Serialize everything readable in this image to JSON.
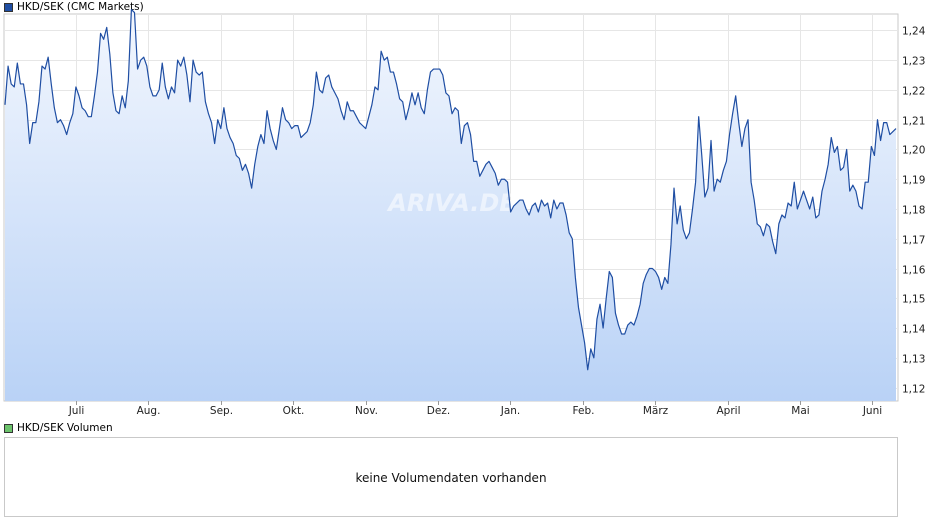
{
  "legend_main": {
    "label": "HKD/SEK (CMC Markets)",
    "color": "#1f4ea3"
  },
  "legend_volume": {
    "label": "HKD/SEK Volumen",
    "color": "#6cc36c"
  },
  "volume_panel": {
    "message": "keine Volumendaten vorhanden"
  },
  "watermark": "ARIVA.DE",
  "chart_data": {
    "type": "area",
    "x_labels": [
      "Juli",
      "Aug.",
      "Sep.",
      "Okt.",
      "Nov.",
      "Dez.",
      "Jan.",
      "Feb.",
      "März",
      "April",
      "Mai",
      "Juni"
    ],
    "y_ticks": [
      "1,24",
      "1,23",
      "1,22",
      "1,21",
      "1,20",
      "1,19",
      "1,18",
      "1,17",
      "1,16",
      "1,15",
      "1,14",
      "1,13",
      "1,12"
    ],
    "y_range": [
      1.1155,
      1.2455
    ],
    "grid": true,
    "line_color": "#1f4ea3",
    "fill_top_color": "#f3f7fe",
    "fill_bottom_color": "#b9d2f6",
    "series": [
      {
        "values": [
          1.215,
          1.228,
          1.222,
          1.221,
          1.229,
          1.222,
          1.222,
          1.215,
          1.202,
          1.209,
          1.209,
          1.216,
          1.228,
          1.227,
          1.231,
          1.222,
          1.214,
          1.209,
          1.21,
          1.208,
          1.205,
          1.209,
          1.212,
          1.221,
          1.218,
          1.214,
          1.213,
          1.211,
          1.211,
          1.218,
          1.226,
          1.239,
          1.237,
          1.241,
          1.232,
          1.219,
          1.213,
          1.212,
          1.218,
          1.214,
          1.223,
          1.247,
          1.246,
          1.227,
          1.23,
          1.231,
          1.228,
          1.221,
          1.218,
          1.218,
          1.22,
          1.229,
          1.221,
          1.217,
          1.221,
          1.219,
          1.23,
          1.228,
          1.231,
          1.225,
          1.216,
          1.23,
          1.226,
          1.225,
          1.226,
          1.216,
          1.212,
          1.209,
          1.202,
          1.21,
          1.207,
          1.214,
          1.207,
          1.204,
          1.202,
          1.198,
          1.197,
          1.193,
          1.195,
          1.192,
          1.187,
          1.195,
          1.201,
          1.205,
          1.202,
          1.213,
          1.207,
          1.203,
          1.2,
          1.207,
          1.214,
          1.21,
          1.209,
          1.207,
          1.208,
          1.208,
          1.204,
          1.205,
          1.206,
          1.209,
          1.215,
          1.226,
          1.22,
          1.219,
          1.224,
          1.225,
          1.221,
          1.219,
          1.217,
          1.213,
          1.21,
          1.216,
          1.213,
          1.213,
          1.211,
          1.209,
          1.208,
          1.207,
          1.211,
          1.215,
          1.221,
          1.22,
          1.233,
          1.23,
          1.231,
          1.226,
          1.226,
          1.222,
          1.217,
          1.216,
          1.21,
          1.214,
          1.219,
          1.215,
          1.219,
          1.214,
          1.212,
          1.22,
          1.226,
          1.227,
          1.227,
          1.227,
          1.225,
          1.219,
          1.218,
          1.212,
          1.214,
          1.213,
          1.202,
          1.208,
          1.209,
          1.205,
          1.196,
          1.196,
          1.191,
          1.193,
          1.195,
          1.196,
          1.194,
          1.192,
          1.188,
          1.19,
          1.19,
          1.189,
          1.179,
          1.181,
          1.182,
          1.183,
          1.183,
          1.18,
          1.178,
          1.181,
          1.182,
          1.179,
          1.183,
          1.181,
          1.182,
          1.177,
          1.183,
          1.18,
          1.182,
          1.182,
          1.178,
          1.172,
          1.17,
          1.157,
          1.147,
          1.141,
          1.135,
          1.126,
          1.133,
          1.13,
          1.143,
          1.148,
          1.14,
          1.15,
          1.159,
          1.157,
          1.145,
          1.141,
          1.138,
          1.138,
          1.141,
          1.142,
          1.141,
          1.144,
          1.148,
          1.155,
          1.158,
          1.16,
          1.16,
          1.159,
          1.157,
          1.153,
          1.157,
          1.155,
          1.168,
          1.187,
          1.175,
          1.181,
          1.173,
          1.17,
          1.172,
          1.18,
          1.189,
          1.211,
          1.198,
          1.184,
          1.187,
          1.203,
          1.186,
          1.19,
          1.189,
          1.193,
          1.196,
          1.205,
          1.212,
          1.218,
          1.209,
          1.201,
          1.207,
          1.21,
          1.189,
          1.183,
          1.175,
          1.174,
          1.171,
          1.175,
          1.174,
          1.169,
          1.165,
          1.175,
          1.178,
          1.177,
          1.182,
          1.181,
          1.189,
          1.18,
          1.183,
          1.186,
          1.183,
          1.18,
          1.184,
          1.177,
          1.178,
          1.186,
          1.19,
          1.195,
          1.204,
          1.199,
          1.201,
          1.193,
          1.194,
          1.2,
          1.186,
          1.188,
          1.186,
          1.181,
          1.18,
          1.189,
          1.189,
          1.201,
          1.198,
          1.21,
          1.203,
          1.209,
          1.209,
          1.205,
          1.206,
          1.207
        ]
      }
    ]
  }
}
